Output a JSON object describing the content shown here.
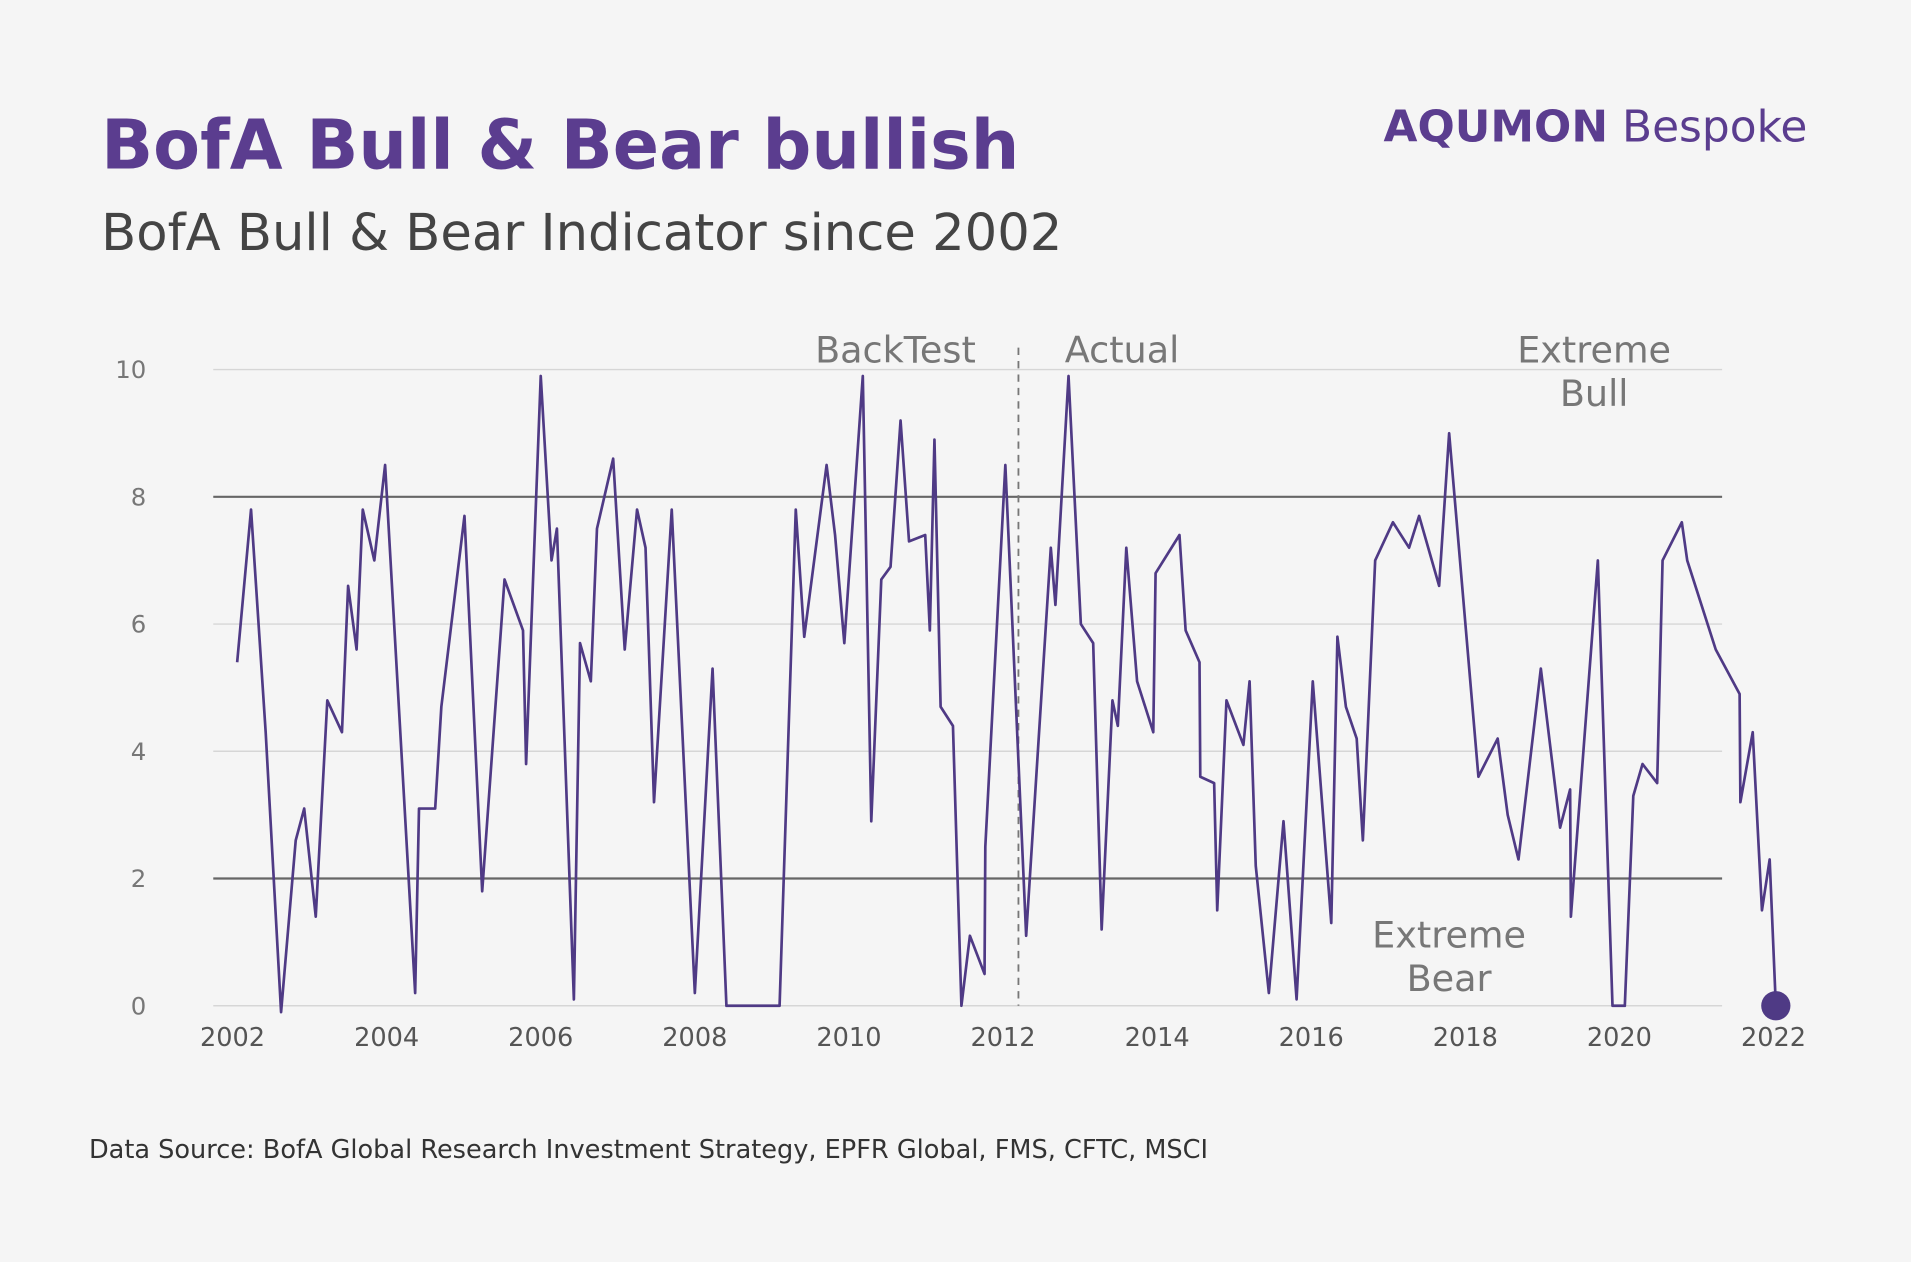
{
  "chart_data": {
    "type": "line",
    "title": "BofA Bull & Bear bullish",
    "subtitle": "BofA Bull & Bear Indicator since 2002",
    "logo": {
      "brand": "AQUMON",
      "product": "Bespoke"
    },
    "source": "Data Source: BofA Global Research Investment Strategy, EPFR Global, FMS, CFTC, MSCI",
    "annotations": {
      "backtest": "BackTest",
      "actual": "Actual",
      "extreme_bull": [
        "Extreme",
        "Bull"
      ],
      "extreme_bear": [
        "Extreme",
        "Bear"
      ]
    },
    "split_x": 2012.2,
    "reference_lines": [
      2,
      8
    ],
    "xlim": [
      2001.75,
      2022.25
    ],
    "xticks": [
      2002,
      2004,
      2006,
      2008,
      2010,
      2012,
      2014,
      2016,
      2018,
      2020,
      2022
    ],
    "ylim": [
      0,
      10
    ],
    "yticks": [
      0,
      2,
      4,
      6,
      8,
      10
    ],
    "grid": true,
    "highlight_last": true,
    "x": [
      2002.06,
      2002.24,
      2002.43,
      2002.63,
      2002.82,
      2002.93,
      2003.08,
      2003.23,
      2003.42,
      2003.5,
      2003.61,
      2003.69,
      2003.84,
      2003.98,
      2004.37,
      2004.42,
      2004.63,
      2004.71,
      2005.01,
      2005.24,
      2005.53,
      2005.77,
      2005.81,
      2006.0,
      2006.14,
      2006.21,
      2006.43,
      2006.51,
      2006.65,
      2006.73,
      2006.94,
      2007.09,
      2007.25,
      2007.36,
      2007.47,
      2007.7,
      2008.0,
      2008.23,
      2008.41,
      2009.1,
      2009.31,
      2009.42,
      2009.71,
      2009.82,
      2009.94,
      2010.18,
      2010.29,
      2010.42,
      2010.54,
      2010.67,
      2010.78,
      2010.99,
      2011.05,
      2011.11,
      2011.19,
      2011.35,
      2011.46,
      2011.57,
      2011.76,
      2011.77,
      2012.03,
      2012.3,
      2012.62,
      2012.68,
      2012.85,
      2013.01,
      2013.17,
      2013.28,
      2013.42,
      2013.49,
      2013.6,
      2013.74,
      2013.95,
      2013.98,
      2014.29,
      2014.37,
      2014.55,
      2014.56,
      2014.74,
      2014.78,
      2014.9,
      2015.12,
      2015.2,
      2015.28,
      2015.45,
      2015.64,
      2015.81,
      2016.02,
      2016.26,
      2016.34,
      2016.45,
      2016.59,
      2016.67,
      2016.83,
      2017.06,
      2017.27,
      2017.4,
      2017.66,
      2017.79,
      2018.17,
      2018.42,
      2018.55,
      2018.69,
      2018.98,
      2019.23,
      2019.36,
      2019.37,
      2019.72,
      2019.91,
      2020.07,
      2020.18,
      2020.3,
      2020.49,
      2020.56,
      2020.81,
      2020.88,
      2021.25,
      2021.56,
      2021.57,
      2021.73,
      2021.85,
      2021.95,
      2022.03
    ],
    "series": [
      {
        "name": "BofA Bull & Bear Indicator",
        "color": "#4f3a85",
        "values": [
          5.4,
          7.8,
          4.3,
          -0.1,
          2.6,
          3.1,
          1.4,
          4.8,
          4.3,
          6.6,
          5.6,
          7.8,
          7.0,
          8.5,
          0.2,
          3.1,
          3.1,
          4.7,
          7.7,
          1.8,
          6.7,
          5.9,
          3.8,
          9.9,
          7.0,
          7.5,
          0.1,
          5.7,
          5.1,
          7.5,
          8.6,
          5.6,
          7.8,
          7.2,
          3.2,
          7.8,
          0.2,
          5.3,
          0.0,
          0.0,
          7.8,
          5.8,
          8.5,
          7.4,
          5.7,
          9.9,
          2.9,
          6.7,
          6.9,
          9.2,
          7.3,
          7.4,
          5.9,
          8.9,
          4.7,
          4.4,
          0.0,
          1.1,
          0.5,
          2.5,
          8.5,
          1.1,
          7.2,
          6.3,
          9.9,
          6.0,
          5.7,
          1.2,
          4.8,
          4.4,
          7.2,
          5.1,
          4.3,
          6.8,
          7.4,
          5.9,
          5.4,
          3.6,
          3.5,
          1.5,
          4.8,
          4.1,
          5.1,
          2.2,
          0.2,
          2.9,
          0.1,
          5.1,
          1.3,
          5.8,
          4.7,
          4.2,
          2.6,
          7.0,
          7.6,
          7.2,
          7.7,
          6.6,
          9.0,
          3.6,
          4.2,
          3.0,
          2.3,
          5.3,
          2.8,
          3.4,
          1.4,
          7.0,
          0.0,
          0.0,
          3.3,
          3.8,
          3.5,
          7.0,
          7.6,
          7.0,
          5.6,
          4.9,
          3.2,
          4.3,
          1.5,
          2.3,
          0.0
        ]
      }
    ]
  }
}
